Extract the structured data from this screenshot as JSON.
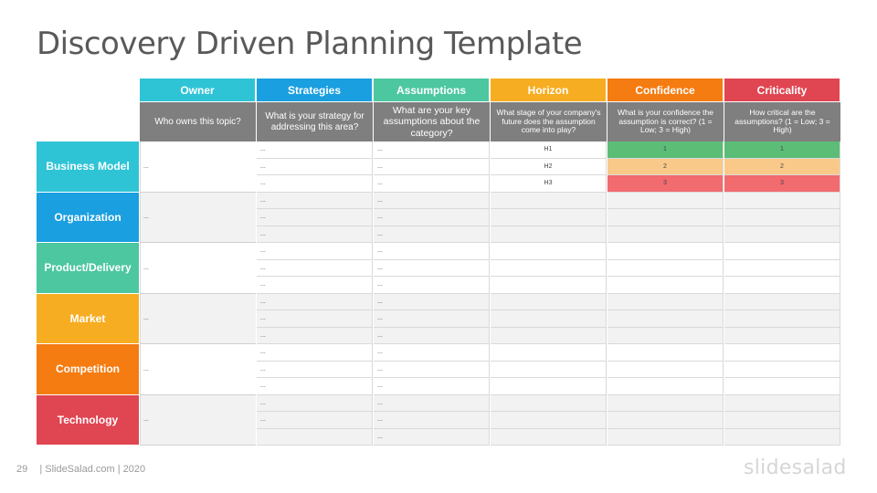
{
  "title": "Discovery Driven Planning Template",
  "columns": [
    {
      "label": "Owner",
      "color": "#2ec4d6",
      "desc": "Who owns this topic?"
    },
    {
      "label": "Strategies",
      "color": "#1a9fe0",
      "desc": "What is your strategy for addressing this area?"
    },
    {
      "label": "Assumptions",
      "color": "#4cc7a0",
      "desc": "What are your key assumptions about the category?"
    },
    {
      "label": "Horizon",
      "color": "#f7ad22",
      "desc": "What stage of your company's future does the assumption come into play?"
    },
    {
      "label": "Confidence",
      "color": "#f57c11",
      "desc": "What is your confidence the assumption is correct? (1 = Low; 3 = High)"
    },
    {
      "label": "Criticality",
      "color": "#e04552",
      "desc": "How critical are the assumptions? (1 = Low; 3 = High)"
    }
  ],
  "categories": [
    {
      "label": "Business Model",
      "color": "#2ec4d6"
    },
    {
      "label": "Organization",
      "color": "#1a9fe0"
    },
    {
      "label": "Product/Delivery",
      "color": "#4cc7a0"
    },
    {
      "label": "Market",
      "color": "#f7ad22"
    },
    {
      "label": "Competition",
      "color": "#f57c11"
    },
    {
      "label": "Technology",
      "color": "#e04552"
    }
  ],
  "placeholder": "...",
  "horizon": [
    "H1",
    "H2",
    "H3"
  ],
  "rating": [
    "1",
    "2",
    "3"
  ],
  "rating_colors": [
    "#5cbd77",
    "#f9c98a",
    "#f26b6f"
  ],
  "footer": {
    "page": "29",
    "text": "| SlideSalad.com | 2020"
  },
  "brand": "slidesalad"
}
